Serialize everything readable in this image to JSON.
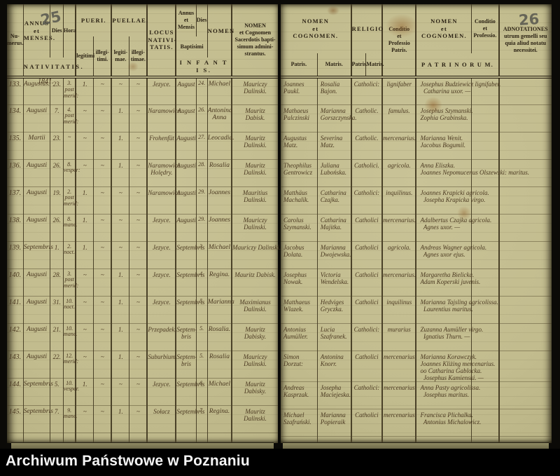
{
  "footer": {
    "label": "Archiwum Państwowe w Poznaniu"
  },
  "left_page": {
    "page_number": "25",
    "year_label": "1841.",
    "header": {
      "numerus": "Nu-\nmerus.",
      "annus_menses": "ANNUS\net\nMENSES.",
      "dies": "Dies",
      "hora": "Hora",
      "nativitatis": "NATIVITATIS.",
      "pueri": "PUERI.",
      "legitimi": "legitimi",
      "illegitimi": "illegi-\ntimi.",
      "puellae": "PUELLAE.",
      "legitimae": "legiti-\nmae.",
      "illegitimae": "illegi-\ntimae.",
      "locus": "LOCUS\nNATIVI-\nTATIS.",
      "annus_mensis_bapt": "Annus\net\nMensis",
      "baptisimi": "Baptisimi",
      "dies_bapt": "Dies",
      "nomen": "NOMEN",
      "infantis": "I N F A N T I S.",
      "sacerdos": "NOMEN\net Cognomen\nSacerdotis bapti-\nsimum admini-\nstrantus."
    },
    "rows": [
      {
        "num": "133.",
        "mensis": "Augustus.",
        "dies": "23.",
        "hora": "3.\npost\nmerid:",
        "pl": "1.",
        "pi": "~",
        "gl": "~",
        "gi": "~",
        "locus": "Jezyce.",
        "bm": "August",
        "bd": "24.",
        "nomen": "Michael",
        "sac": "Mauriczy\nDalinski."
      },
      {
        "num": "134.",
        "mensis": "Augusti",
        "dies": "7.",
        "hora": "4.\npost\nmerid:",
        "pl": "~",
        "pi": "~",
        "gl": "1.",
        "gi": "~",
        "locus": "Naramowice.",
        "bm": "August",
        "bd": "26.",
        "nomen": "Antonina\nAnna",
        "sac": "Mauritz\nDabisk."
      },
      {
        "num": "135.",
        "mensis": "Martii",
        "dies": "23.",
        "hora": "~",
        "pl": "~",
        "pi": "~",
        "gl": "1.",
        "gi": "~",
        "locus": "Frohenfüt",
        "bm": "Augusti",
        "bd": "27.",
        "nomen": "Leocadia.",
        "sac": "Mauritz\nDalinski."
      },
      {
        "num": "136.",
        "mensis": "Augusti",
        "dies": "26.",
        "hora": "8.\nvesper:",
        "pl": "~",
        "pi": "~",
        "gl": "1.",
        "gi": "~",
        "locus": "Naramowice\nHolędry.",
        "bm": "Augusti",
        "bd": "28.",
        "nomen": "Rosalia",
        "sac": "Mauritz\nDalinski."
      },
      {
        "num": "137.",
        "mensis": "Augusti",
        "dies": "19.",
        "hora": "2.\npost\nmerid:",
        "pl": "1.",
        "pi": "~",
        "gl": "~",
        "gi": "~",
        "locus": "Naramowice",
        "bm": "Augusti",
        "bd": "29.",
        "nomen": "Joannes",
        "sac": "Mauritius\nDalinski."
      },
      {
        "num": "138.",
        "mensis": "Augusti",
        "dies": "26.",
        "hora": "8.\nmane.",
        "pl": "1.",
        "pi": "~",
        "gl": "~",
        "gi": "~",
        "locus": "Jezyce.",
        "bm": "Augusti",
        "bd": "29.",
        "nomen": "Joannes",
        "sac": "Mauriczy\nDalinski."
      },
      {
        "num": "139.",
        "mensis": "Septembris",
        "dies": "1.",
        "hora": "2.\nnoct.",
        "pl": "1.",
        "pi": "~",
        "gl": "~",
        "gi": "~",
        "locus": "Jezyce.",
        "bm": "Septembris",
        "bd": "3.",
        "nomen": "Michael",
        "sac": "Mauriczy Dalinski."
      },
      {
        "num": "140.",
        "mensis": "Augusti",
        "dies": "28.",
        "hora": "3.\npost\nmerid:",
        "pl": "~",
        "pi": "~",
        "gl": "1.",
        "gi": "~",
        "locus": "Jezyce.",
        "bm": "Septembris",
        "bd": "4.",
        "nomen": "Regina.",
        "sac": "Mauritz Dabisk."
      },
      {
        "num": "141.",
        "mensis": "Augusti",
        "dies": "31.",
        "hora": "10.\nnoct.",
        "pl": "~",
        "pi": "~",
        "gl": "1.",
        "gi": "~",
        "locus": "Jezyce.",
        "bm": "Septembris",
        "bd": "5.",
        "nomen": "Marianna",
        "sac": "Maximianus\nDalinski."
      },
      {
        "num": "142.",
        "mensis": "Augusti",
        "dies": "21.",
        "hora": "10.\nmane.",
        "pl": "~",
        "pi": "~",
        "gl": "1.",
        "gi": "~",
        "locus": "Przepadek.",
        "bm": "Septem-\nbris",
        "bd": "5.",
        "nomen": "Rosalia.",
        "sac": "Mauritz\nDabisky."
      },
      {
        "num": "143.",
        "mensis": "Augusti",
        "dies": "22.",
        "hora": "12.\nmerid:",
        "pl": "~",
        "pi": "~",
        "gl": "1.",
        "gi": "~",
        "locus": "Suburbium",
        "bm": "Septem-\nbris",
        "bd": "5.",
        "nomen": "Rosalia",
        "sac": "Mauriczy\nDalinski."
      },
      {
        "num": "144.",
        "mensis": "Septembris",
        "dies": "5.",
        "hora": "10.\nvesper.",
        "pl": "1.",
        "pi": "~",
        "gl": "~",
        "gi": "~",
        "locus": "Jezyce.",
        "bm": "Septembris",
        "bd": "6.",
        "nomen": "Michael",
        "sac": "Mauritz\nDabisky."
      },
      {
        "num": "145.",
        "mensis": "Septembris",
        "dies": "7.",
        "hora": "9.\nmane.",
        "pl": "~",
        "pi": "~",
        "gl": "1.",
        "gi": "~",
        "locus": "Sołacz",
        "bm": "Septembris",
        "bd": "7.",
        "nomen": "Regina.",
        "sac": "Mauritz\nDalinski."
      }
    ]
  },
  "right_page": {
    "page_number": "26",
    "header": {
      "nomen_cognomen": "NOMEN\net\nCOGNOMEN.",
      "patris": "Patris.",
      "matris": "Matris.",
      "religio": "RELIGIO",
      "r_patris": "Patris.",
      "r_matris": "Matris.",
      "conditio_patris": "Conditio\net\nProfessio\nPatris.",
      "nomen_cognomen2": "NOMEN\net\nCOGNOMEN.",
      "conditio2": "Conditio\net\nProfessio.",
      "patrinorum": "P A T R I N O R U M.",
      "adnotationes": "ADNOTATIONES\nutrum gemelli seu\nquia aliud notatu\nnecessitei."
    },
    "rows": [
      {
        "pater": "Joannes\nPaukl.",
        "mater": "Rosalia\nBajon.",
        "religio": "Catholici:",
        "cond": "lignifaber",
        "patrini": "Josephus Budziewicz lignifaber.\n  Catharina uxor. —",
        "cond2": "",
        "adnot": ""
      },
      {
        "pater": "Mathaeus\nPalczinski",
        "mater": "Marianna\nGorszczynska.",
        "religio": "Catholic.",
        "cond": "famulus.",
        "patrini": "Josephus Szymanski.\nZophia Grabinska.",
        "cond2": "",
        "adnot": ""
      },
      {
        "pater": "Augustus\nMatz.",
        "mater": "Severina\nMatz.",
        "religio": "Catholic.",
        "cond": "mercenarius.",
        "patrini": "Marianna Wenit.\nJacobus Bogumil.",
        "cond2": "",
        "adnot": ""
      },
      {
        "pater": "Theophilus\nGentrowicz",
        "mater": "Juliana\nLubońska.",
        "religio": "Catholici.",
        "cond": "agricola.",
        "patrini": "Anna Eliszka.\nJoannes Nepomucenus Olszewski: maritus.",
        "cond2": "",
        "adnot": ""
      },
      {
        "pater": "Matthäus\nMachalik.",
        "mater": "Catharina\nCzajka.",
        "religio": "Catholici:",
        "cond": "inquilinus.",
        "patrini": "Joannes Krapicki agricola.\n  Josepha Krapicka virgo.",
        "cond2": "",
        "adnot": ""
      },
      {
        "pater": "Carolus\nSzymanski.",
        "mater": "Catharina\nMajitka.",
        "religio": "Catholici",
        "cond": "mercenarius.",
        "patrini": "Adalbertus Czajka agricola.\n  Agnes uxor. —",
        "cond2": "",
        "adnot": ""
      },
      {
        "pater": "Jacobus\nDolata.",
        "mater": "Marianna\nDwojewska.",
        "religio": "Catholici",
        "cond": "agricola.",
        "patrini": "Andreas Wagner agricola.\n  Agnes uxor ejus.",
        "cond2": "",
        "adnot": ""
      },
      {
        "pater": "Josephus\nNowak.",
        "mater": "Victoria\nWendelska.",
        "religio": "Catholici",
        "cond": "mercenarius.",
        "patrini": "Margaretha Bielicka.\nAdam Koperski juvenis.",
        "cond2": "",
        "adnot": ""
      },
      {
        "pater": "Matthaeus\nWlazek.",
        "mater": "Hedviges\nGryczka.",
        "religio": "Catholici",
        "cond": "inquilinus",
        "patrini": "Marianna Tajsling agricolissa.\n  Laurentius maritus.",
        "cond2": "",
        "adnot": ""
      },
      {
        "pater": "Antonius\nAumüller.",
        "mater": "Lucia\nSzafranek.",
        "religio": "Catholici:",
        "cond": "murarius",
        "patrini": "Zuzanna Aumüller virgo.\n  Ignatius Thurn. —",
        "cond2": "",
        "adnot": ""
      },
      {
        "pater": "Simon\nDorzut:",
        "mater": "Antonina\nKnorr.",
        "religio": "Catholici",
        "cond": "mercenarius",
        "patrini": "Marianna Korawczyk.\nJoannes Kliżing mercenarius.\noo Catharina Gablocka.\n  Josephus Kamienski. —",
        "cond2": "",
        "adnot": ""
      },
      {
        "pater": "Andreas\nKasprzak.",
        "mater": "Josepha\nMaciejeska.",
        "religio": "Catholici:",
        "cond": "mercenarius",
        "patrini": "Anna Pasty agricolissa.\n  Josephus maritus.",
        "cond2": "",
        "adnot": ""
      },
      {
        "pater": "Michael\nSzafrański.",
        "mater": "Marianna\nPopieraik",
        "religio": "Catholici",
        "cond": "mercenarius",
        "patrini": "Francisca Plichalka.\n  Antonius Michalowicz.",
        "cond2": "",
        "adnot": ""
      }
    ]
  }
}
